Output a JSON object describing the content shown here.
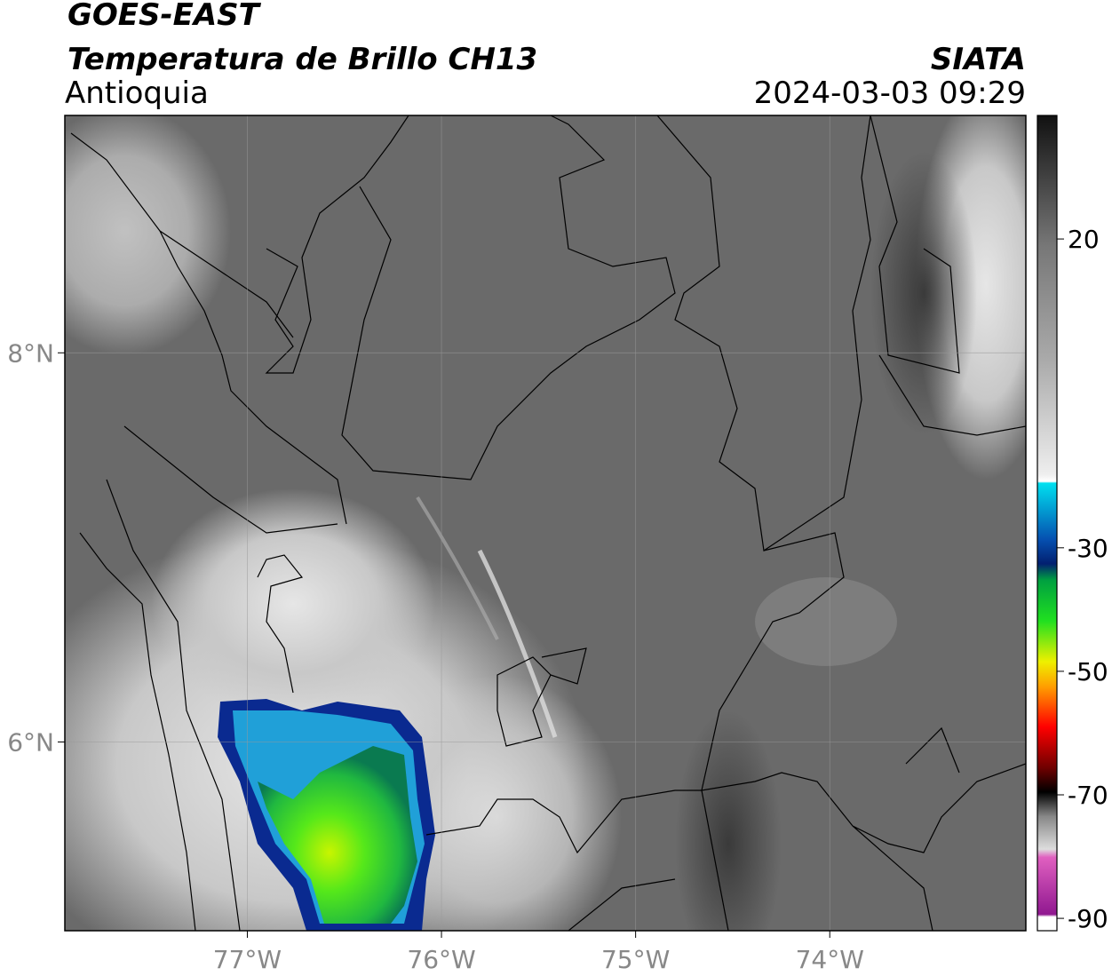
{
  "header": {
    "title": "GOES-EAST",
    "subtitle": "Temperatura de Brillo CH13",
    "region": "Antioquia",
    "agency": "SIATA",
    "datetime": "2024-03-03 09:29"
  },
  "map": {
    "xlim": [
      -77.94,
      -72.99
    ],
    "ylim": [
      5.03,
      9.22
    ],
    "xticks": [
      {
        "value": -77,
        "label": "77°W"
      },
      {
        "value": -76,
        "label": "76°W"
      },
      {
        "value": -75,
        "label": "75°W"
      },
      {
        "value": -74,
        "label": "74°W"
      }
    ],
    "yticks": [
      {
        "value": 8,
        "label": "8°N"
      },
      {
        "value": 6,
        "label": "6°N"
      }
    ],
    "grid": true
  },
  "colorbar": {
    "clim": [
      -92,
      40
    ],
    "ticks": [
      20,
      -30,
      -50,
      -70,
      -90
    ]
  }
}
